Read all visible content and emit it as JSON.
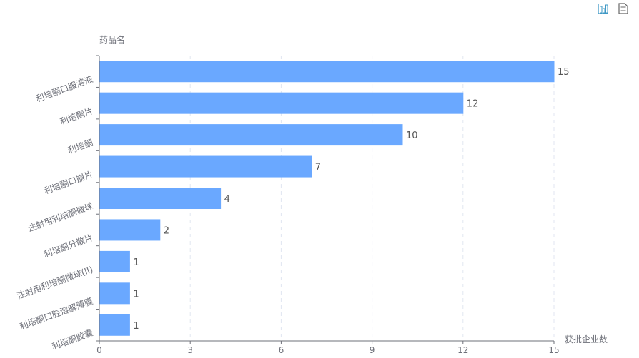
{
  "toolbox": {
    "icons": [
      "bar-chart-icon",
      "data-view-icon"
    ],
    "accent": "#3e98c5"
  },
  "chart_data": {
    "type": "bar",
    "orientation": "horizontal",
    "ylabel": "药品名",
    "xlabel": "获批企业数",
    "categories": [
      "利培酮口服溶液",
      "利培酮片",
      "利培酮",
      "利培酮口崩片",
      "注射用利培酮微球",
      "利培酮分散片",
      "注射用利培酮微球(II)",
      "利培酮口腔溶解薄膜",
      "利培酮胶囊"
    ],
    "values": [
      15,
      12,
      10,
      7,
      4,
      2,
      1,
      1,
      1
    ],
    "xlim": [
      0,
      15
    ],
    "xticks": [
      "0",
      "3",
      "6",
      "9",
      "12",
      "15"
    ],
    "grid": "vertical dashed",
    "bar_color": "#6aa8ff",
    "data_labels": true
  }
}
